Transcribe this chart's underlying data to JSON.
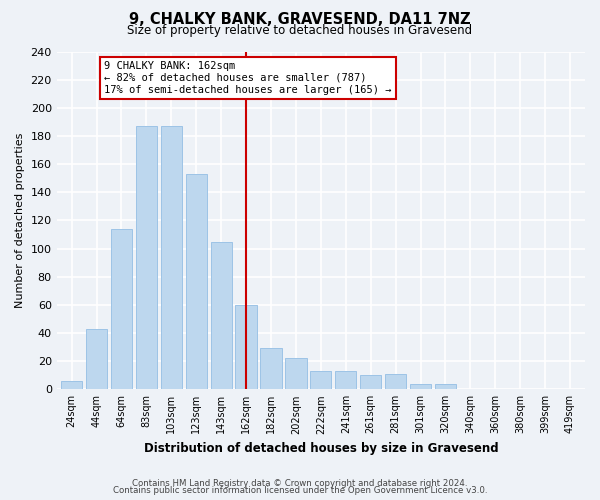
{
  "title": "9, CHALKY BANK, GRAVESEND, DA11 7NZ",
  "subtitle": "Size of property relative to detached houses in Gravesend",
  "xlabel": "Distribution of detached houses by size in Gravesend",
  "ylabel": "Number of detached properties",
  "bar_labels": [
    "24sqm",
    "44sqm",
    "64sqm",
    "83sqm",
    "103sqm",
    "123sqm",
    "143sqm",
    "162sqm",
    "182sqm",
    "202sqm",
    "222sqm",
    "241sqm",
    "261sqm",
    "281sqm",
    "301sqm",
    "320sqm",
    "340sqm",
    "360sqm",
    "380sqm",
    "399sqm",
    "419sqm"
  ],
  "bar_heights": [
    6,
    43,
    114,
    187,
    187,
    153,
    105,
    60,
    29,
    22,
    13,
    13,
    10,
    11,
    4,
    4,
    0,
    0,
    0,
    0,
    0
  ],
  "bar_color": "#BDD7EE",
  "bar_edge_color": "#9DC3E6",
  "vline_x_index": 7,
  "vline_color": "#CC0000",
  "annotation_line1": "9 CHALKY BANK: 162sqm",
  "annotation_line2": "← 82% of detached houses are smaller (787)",
  "annotation_line3": "17% of semi-detached houses are larger (165) →",
  "annotation_box_color": "white",
  "annotation_box_edge_color": "#CC0000",
  "ylim": [
    0,
    240
  ],
  "yticks": [
    0,
    20,
    40,
    60,
    80,
    100,
    120,
    140,
    160,
    180,
    200,
    220,
    240
  ],
  "footer_line1": "Contains HM Land Registry data © Crown copyright and database right 2024.",
  "footer_line2": "Contains public sector information licensed under the Open Government Licence v3.0.",
  "bg_color": "#EEF2F7",
  "grid_color": "white"
}
